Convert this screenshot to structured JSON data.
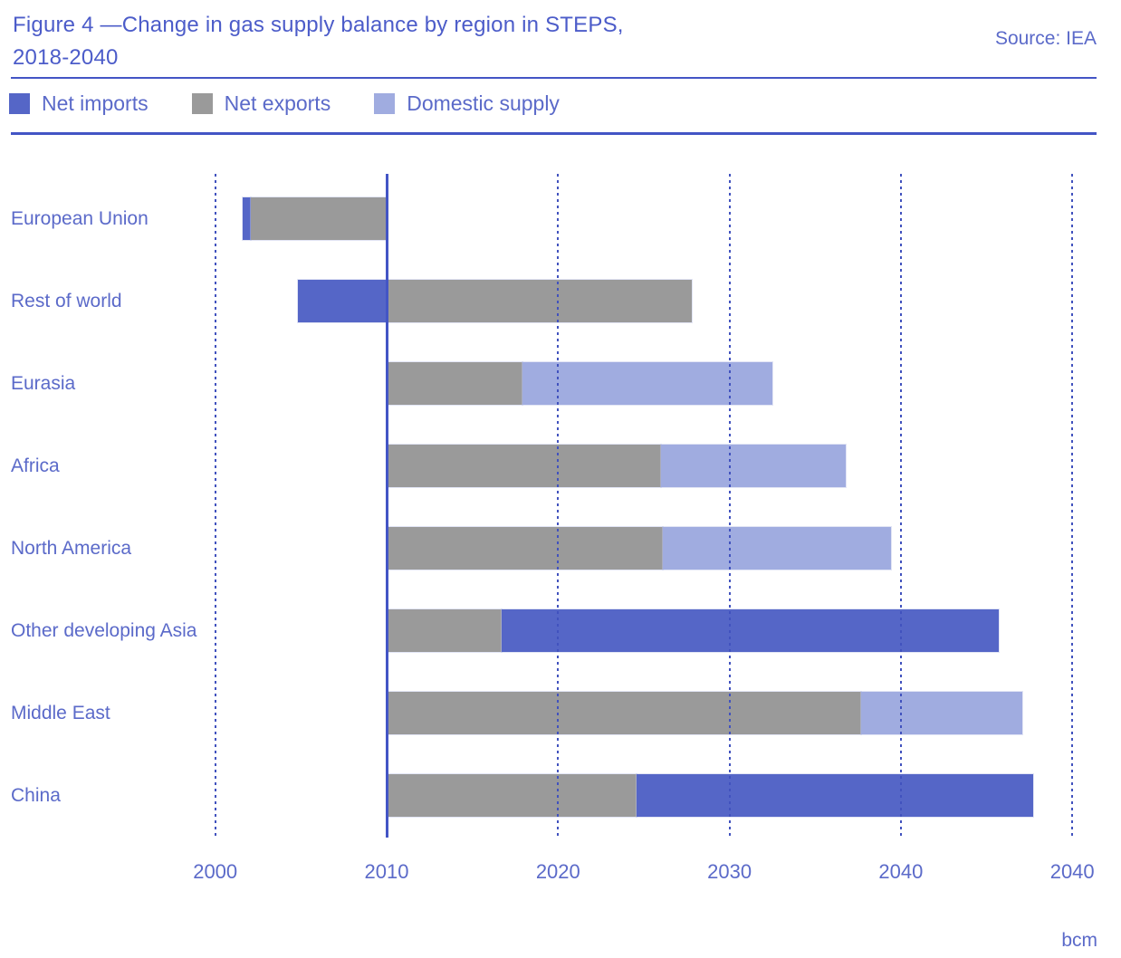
{
  "figure": {
    "title_line1": "Figure 4 —Change in gas supply balance by region in STEPS,",
    "title_line2": "2018-2040",
    "source": "Source: IEA",
    "unit": "bcm"
  },
  "legend": {
    "items": [
      {
        "label": "Net imports",
        "series": "net_imports"
      },
      {
        "label": "Net exports",
        "series": "net_exports"
      },
      {
        "label": "Domestic supply",
        "series": "domestic_supply"
      }
    ]
  },
  "colors": {
    "net_imports": "#5566c7",
    "net_exports": "#9a9a9a",
    "domestic_supply": "#a0ace0",
    "accent_line": "#4355c5",
    "text": "#5b6ac9",
    "title_text": "#4c5cc9"
  },
  "chart_data": {
    "type": "bar",
    "orientation": "horizontal",
    "stacked": true,
    "title": "Change in gas supply balance by region in STEPS, 2018-2040",
    "unit": "bcm",
    "legend_position": "top",
    "x_axis": {
      "tick_labels": [
        "2000",
        "2010",
        "2020",
        "2030",
        "2040",
        "2040"
      ],
      "tick_values_bcm": [
        -100,
        0,
        100,
        200,
        300,
        400
      ],
      "zero_at_tick_label": "2010",
      "gridlines": "dotted-vertical",
      "range_bcm": [
        -105,
        430
      ]
    },
    "categories": [
      "European Union",
      "Rest of world",
      "Eurasia",
      "Africa",
      "North America",
      "Other developing Asia",
      "Middle East",
      "China"
    ],
    "series_order": [
      "net_imports",
      "net_exports",
      "domestic_supply"
    ],
    "rows": [
      {
        "region": "European Union",
        "segments": [
          {
            "series": "net_imports",
            "from": -84,
            "to": -79
          },
          {
            "series": "net_exports",
            "from": -79,
            "to": 0
          }
        ]
      },
      {
        "region": "Rest of world",
        "segments": [
          {
            "series": "net_imports",
            "from": -52,
            "to": 0
          },
          {
            "series": "net_exports",
            "from": 0,
            "to": 178
          }
        ]
      },
      {
        "region": "Eurasia",
        "segments": [
          {
            "series": "net_exports",
            "from": 0,
            "to": 79
          },
          {
            "series": "domestic_supply",
            "from": 79,
            "to": 225
          }
        ]
      },
      {
        "region": "Africa",
        "segments": [
          {
            "series": "net_exports",
            "from": 0,
            "to": 160
          },
          {
            "series": "domestic_supply",
            "from": 160,
            "to": 268
          }
        ]
      },
      {
        "region": "North America",
        "segments": [
          {
            "series": "net_exports",
            "from": 0,
            "to": 161
          },
          {
            "series": "domestic_supply",
            "from": 161,
            "to": 294
          }
        ]
      },
      {
        "region": "Other developing Asia",
        "segments": [
          {
            "series": "net_exports",
            "from": 0,
            "to": 67
          },
          {
            "series": "net_imports",
            "from": 67,
            "to": 357
          }
        ]
      },
      {
        "region": "Middle East",
        "segments": [
          {
            "series": "net_exports",
            "from": 0,
            "to": 277
          },
          {
            "series": "domestic_supply",
            "from": 277,
            "to": 371
          }
        ]
      },
      {
        "region": "China",
        "segments": [
          {
            "series": "net_exports",
            "from": 0,
            "to": 146
          },
          {
            "series": "net_imports",
            "from": 146,
            "to": 377
          }
        ]
      }
    ]
  }
}
